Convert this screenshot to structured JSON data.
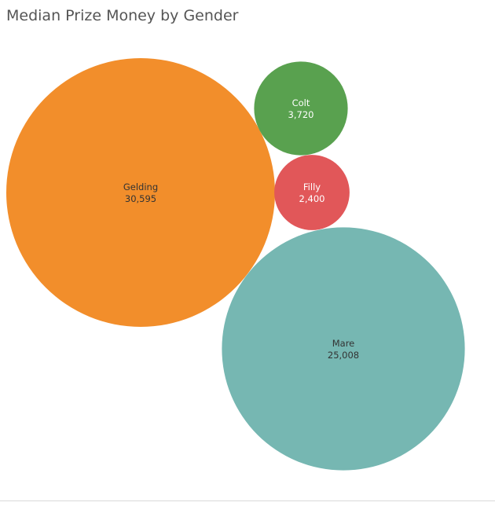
{
  "title": "Median Prize Money by Gender",
  "chart_data": {
    "type": "bubble",
    "title": "Median Prize Money by Gender",
    "series": [
      {
        "name": "Gelding",
        "value": 30595,
        "label": "30,595",
        "color": "#F28E2B",
        "text_color": "#333333"
      },
      {
        "name": "Mare",
        "value": 25008,
        "label": "25,008",
        "color": "#76B7B2",
        "text_color": "#333333"
      },
      {
        "name": "Colt",
        "value": 3720,
        "label": "3,720",
        "color": "#59A14F",
        "text_color": "#ffffff"
      },
      {
        "name": "Filly",
        "value": 2400,
        "label": "2,400",
        "color": "#E15759",
        "text_color": "#ffffff"
      }
    ]
  }
}
